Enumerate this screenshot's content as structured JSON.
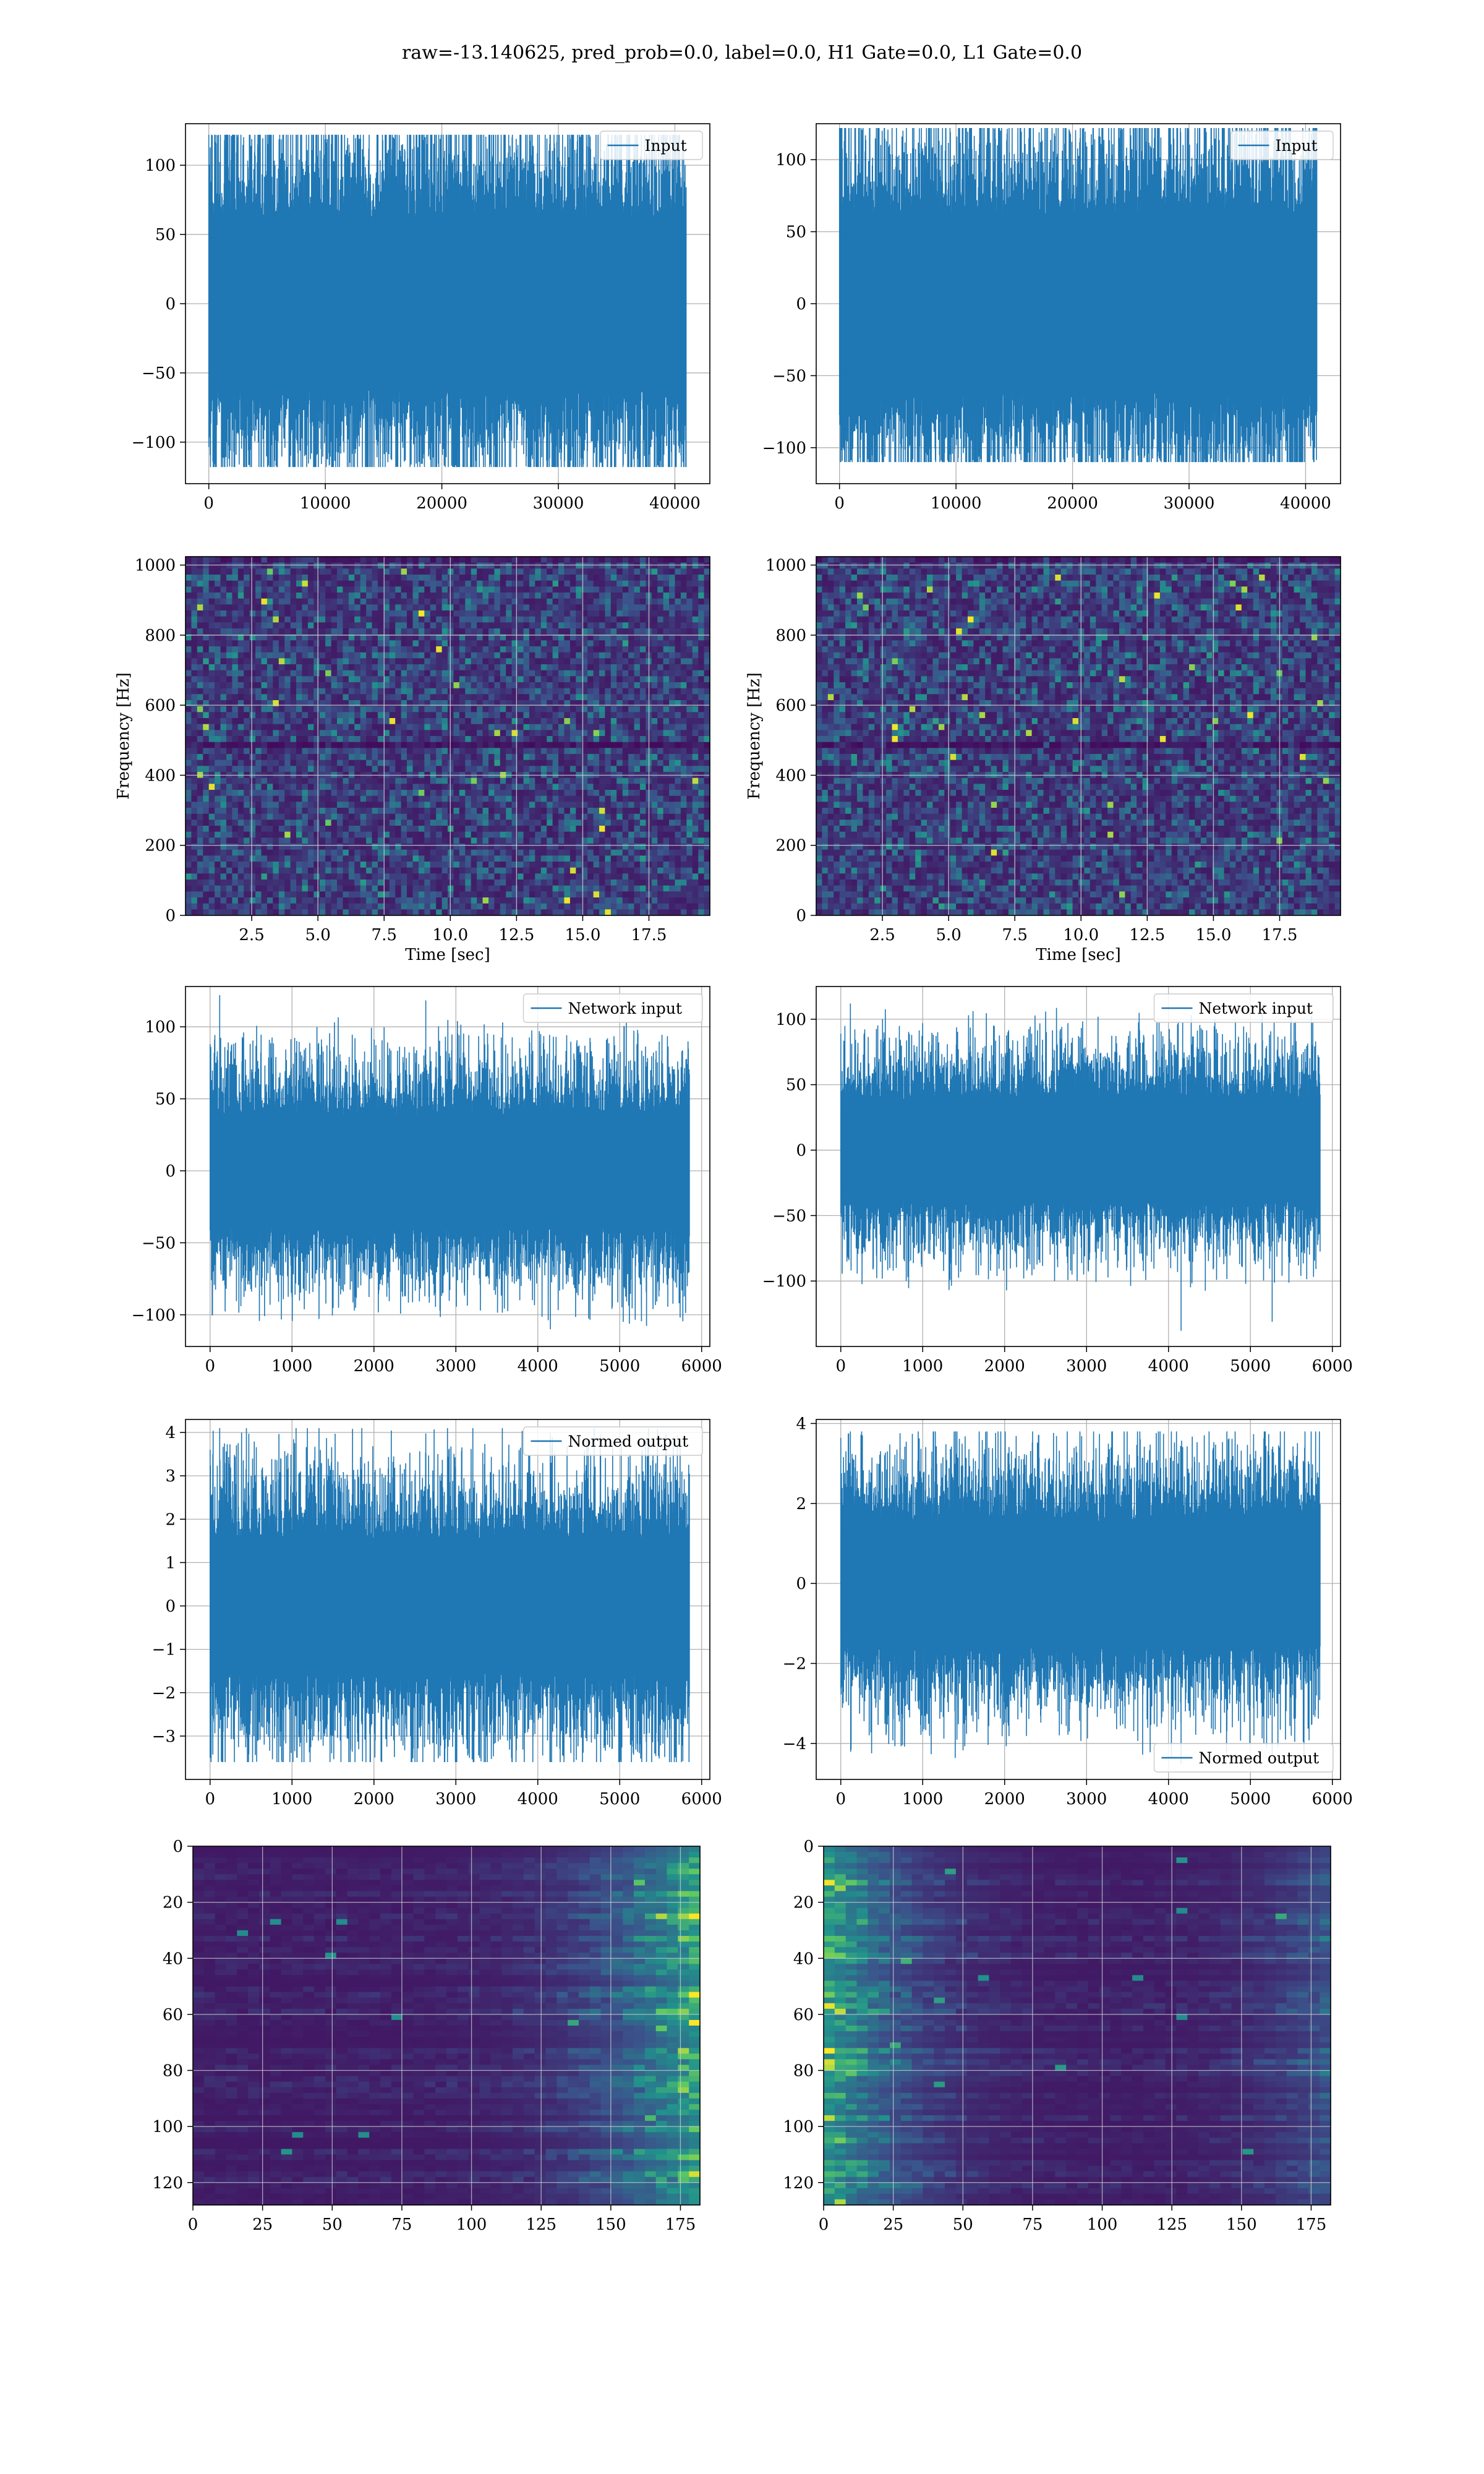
{
  "figure": {
    "suptitle": "raw=-13.140625, pred_prob=0.0, label=0.0, H1 Gate=0.0, L1 Gate=0.0"
  },
  "colors": {
    "line": "#1f77b4",
    "grid": "#b0b0b0",
    "viridis_low": "#440154",
    "viridis_mid": "#21918c",
    "viridis_high": "#fde725"
  },
  "chart_data": [
    {
      "id": "input-h1",
      "type": "line",
      "signal": "noise",
      "title": "",
      "xlabel": "",
      "ylabel": "",
      "legend": [
        "Input"
      ],
      "legend_loc": "upper right",
      "xlim": [
        -2000,
        43000
      ],
      "ylim": [
        -130,
        130
      ],
      "xticks": [
        0,
        10000,
        20000,
        30000,
        40000
      ],
      "yticks": [
        -100,
        -50,
        0,
        50,
        100
      ],
      "n_samples": 40960,
      "body_amp": 40,
      "peak_max": 122,
      "peak_min": -118,
      "series": [
        {
          "name": "Input",
          "x_range": [
            0,
            40960
          ],
          "y_range": [
            -118,
            122
          ]
        }
      ]
    },
    {
      "id": "input-l1",
      "type": "line",
      "signal": "noise",
      "title": "",
      "xlabel": "",
      "ylabel": "",
      "legend": [
        "Input"
      ],
      "legend_loc": "upper right",
      "xlim": [
        -2000,
        43000
      ],
      "ylim": [
        -125,
        125
      ],
      "xticks": [
        0,
        10000,
        20000,
        30000,
        40000
      ],
      "yticks": [
        -100,
        -50,
        0,
        50,
        100
      ],
      "n_samples": 40960,
      "body_amp": 40,
      "peak_max": 122,
      "peak_min": -110,
      "series": [
        {
          "name": "Input",
          "x_range": [
            0,
            40960
          ],
          "y_range": [
            -110,
            122
          ]
        }
      ]
    },
    {
      "id": "spec-h1",
      "type": "heatmap",
      "kind": "spectrogram",
      "title": "",
      "xlabel": "Time [sec]",
      "ylabel": "Frequency [Hz]",
      "xlim": [
        0.0,
        19.8
      ],
      "ylim": [
        0,
        1024
      ],
      "xticks": [
        2.5,
        5.0,
        7.5,
        10.0,
        12.5,
        15.0,
        17.5
      ],
      "yticks": [
        0,
        200,
        400,
        600,
        800,
        1000
      ],
      "dark_band_hz": 500,
      "colormap": "viridis"
    },
    {
      "id": "spec-l1",
      "type": "heatmap",
      "kind": "spectrogram",
      "title": "",
      "xlabel": "Time [sec]",
      "ylabel": "Frequency [Hz]",
      "xlim": [
        0.0,
        19.8
      ],
      "ylim": [
        0,
        1024
      ],
      "xticks": [
        2.5,
        5.0,
        7.5,
        10.0,
        12.5,
        15.0,
        17.5
      ],
      "yticks": [
        0,
        200,
        400,
        600,
        800,
        1000
      ],
      "dark_band_hz": 500,
      "colormap": "viridis"
    },
    {
      "id": "network-input-h1",
      "type": "line",
      "signal": "noise",
      "title": "",
      "xlabel": "",
      "ylabel": "",
      "legend": [
        "Network input"
      ],
      "legend_loc": "upper right",
      "xlim": [
        -300,
        6100
      ],
      "ylim": [
        -122,
        128
      ],
      "xticks": [
        0,
        1000,
        2000,
        3000,
        4000,
        5000,
        6000
      ],
      "yticks": [
        -100,
        -50,
        0,
        50,
        100
      ],
      "n_samples": 5850,
      "body_amp": 25,
      "peak_max": 122,
      "peak_min": -110,
      "series": [
        {
          "name": "Network input",
          "x_range": [
            0,
            5850
          ],
          "y_range": [
            -110,
            122
          ]
        }
      ]
    },
    {
      "id": "network-input-l1",
      "type": "line",
      "signal": "noise",
      "title": "",
      "xlabel": "",
      "ylabel": "",
      "legend": [
        "Network input"
      ],
      "legend_loc": "upper right",
      "xlim": [
        -300,
        6100
      ],
      "ylim": [
        -150,
        125
      ],
      "xticks": [
        0,
        1000,
        2000,
        3000,
        4000,
        5000,
        6000
      ],
      "yticks": [
        -100,
        -50,
        0,
        50,
        100
      ],
      "n_samples": 5850,
      "body_amp": 25,
      "peak_max": 112,
      "peak_min": -138,
      "series": [
        {
          "name": "Network input",
          "x_range": [
            0,
            5850
          ],
          "y_range": [
            -138,
            112
          ]
        }
      ]
    },
    {
      "id": "normed-output-h1",
      "type": "line",
      "signal": "noise",
      "title": "",
      "xlabel": "",
      "ylabel": "",
      "legend": [
        "Normed output"
      ],
      "legend_loc": "upper right",
      "xlim": [
        -300,
        6100
      ],
      "ylim": [
        -4.0,
        4.3
      ],
      "xticks": [
        0,
        1000,
        2000,
        3000,
        4000,
        5000,
        6000
      ],
      "yticks": [
        -3,
        -2,
        -1,
        0,
        1,
        2,
        3,
        4
      ],
      "n_samples": 5850,
      "body_amp": 1,
      "peak_max": 4.1,
      "peak_min": -3.6,
      "series": [
        {
          "name": "Normed output",
          "x_range": [
            0,
            5850
          ],
          "y_range": [
            -3.6,
            4.1
          ]
        }
      ]
    },
    {
      "id": "normed-output-l1",
      "type": "line",
      "signal": "noise",
      "title": "",
      "xlabel": "",
      "ylabel": "",
      "legend": [
        "Normed output"
      ],
      "legend_loc": "lower right",
      "xlim": [
        -300,
        6100
      ],
      "ylim": [
        -4.9,
        4.1
      ],
      "xticks": [
        0,
        1000,
        2000,
        3000,
        4000,
        5000,
        6000
      ],
      "yticks": [
        -4,
        -2,
        0,
        2,
        4
      ],
      "n_samples": 5850,
      "body_amp": 1,
      "peak_max": 3.8,
      "peak_min": -4.5,
      "series": [
        {
          "name": "Normed output",
          "x_range": [
            0,
            5850
          ],
          "y_range": [
            -4.5,
            3.8
          ]
        }
      ]
    },
    {
      "id": "features-h1",
      "type": "heatmap",
      "kind": "feature-map",
      "title": "",
      "xlabel": "",
      "ylabel": "",
      "xlim": [
        0,
        182
      ],
      "ylim": [
        128,
        0
      ],
      "xticks": [
        0,
        25,
        50,
        75,
        100,
        125,
        150,
        175
      ],
      "yticks": [
        0,
        20,
        40,
        60,
        80,
        100,
        120
      ],
      "n_rows": 128,
      "n_cols": 182,
      "bright_side": "right",
      "colormap": "viridis"
    },
    {
      "id": "features-l1",
      "type": "heatmap",
      "kind": "feature-map",
      "title": "",
      "xlabel": "",
      "ylabel": "",
      "xlim": [
        0,
        182
      ],
      "ylim": [
        128,
        0
      ],
      "xticks": [
        0,
        25,
        50,
        75,
        100,
        125,
        150,
        175
      ],
      "yticks": [
        0,
        20,
        40,
        60,
        80,
        100,
        120
      ],
      "n_rows": 128,
      "n_cols": 182,
      "bright_side": "left",
      "colormap": "viridis"
    }
  ]
}
